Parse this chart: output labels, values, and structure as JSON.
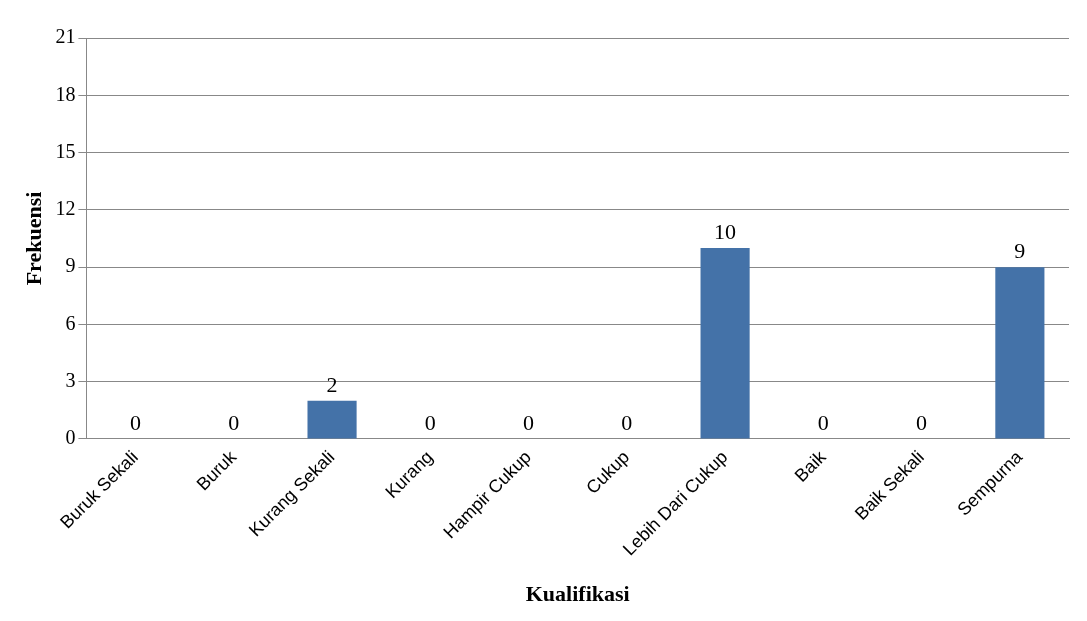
{
  "chart_data": {
    "type": "bar",
    "xlabel": "Kualifikasi",
    "ylabel": "Frekuensi",
    "categories": [
      "Buruk Sekali",
      "Buruk",
      "Kurang Sekali",
      "Kurang",
      "Hampir Cukup",
      "Cukup",
      "Lebih Dari Cukup",
      "Baik",
      "Baik Sekali",
      "Sempurna"
    ],
    "values": [
      0,
      0,
      2,
      0,
      0,
      0,
      10,
      0,
      0,
      9
    ],
    "color": "#4472a8",
    "ylim": [
      0,
      21
    ],
    "yticks": [
      0,
      3,
      6,
      9,
      12,
      15,
      18,
      21
    ],
    "grid": "y",
    "data_labels": true,
    "legend": false
  }
}
